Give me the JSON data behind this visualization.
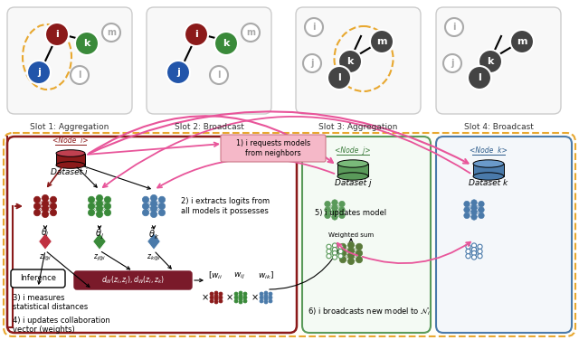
{
  "bg_color": "#ffffff",
  "outer_dashed_color": "#e8a830",
  "slot_box_color": "#f5f5f5",
  "slot_box_edge": "#cccccc",
  "slot_titles": [
    "Slot 1: Aggregation",
    "Slot 2: Broadcast",
    "Slot 3: Aggregation",
    "Slot 4: Broadcast"
  ],
  "node_i_color": "#8b1a1a",
  "node_j_color": "#2255aa",
  "node_k_color": "#3a8a3a",
  "node_dark": "#404040",
  "dark_red": "#8b1a1a",
  "pink_arrow": "#e8559a",
  "green_dataset": "#5a9a5a",
  "blue_dataset": "#4a7aaa",
  "distance_box_color": "#7a1a2a",
  "req_box_color": "#f5b8c8",
  "step1": "1) i requests models\nfrom neighbors",
  "step2": "2) i extracts logits from\nall models it possesses",
  "step3": "3) i measures\nstatistical distances",
  "step4": "4) i updates collaboration\nvector (weights)",
  "step5": "5) i updates model",
  "step6": "6) i broadcasts new model to "
}
